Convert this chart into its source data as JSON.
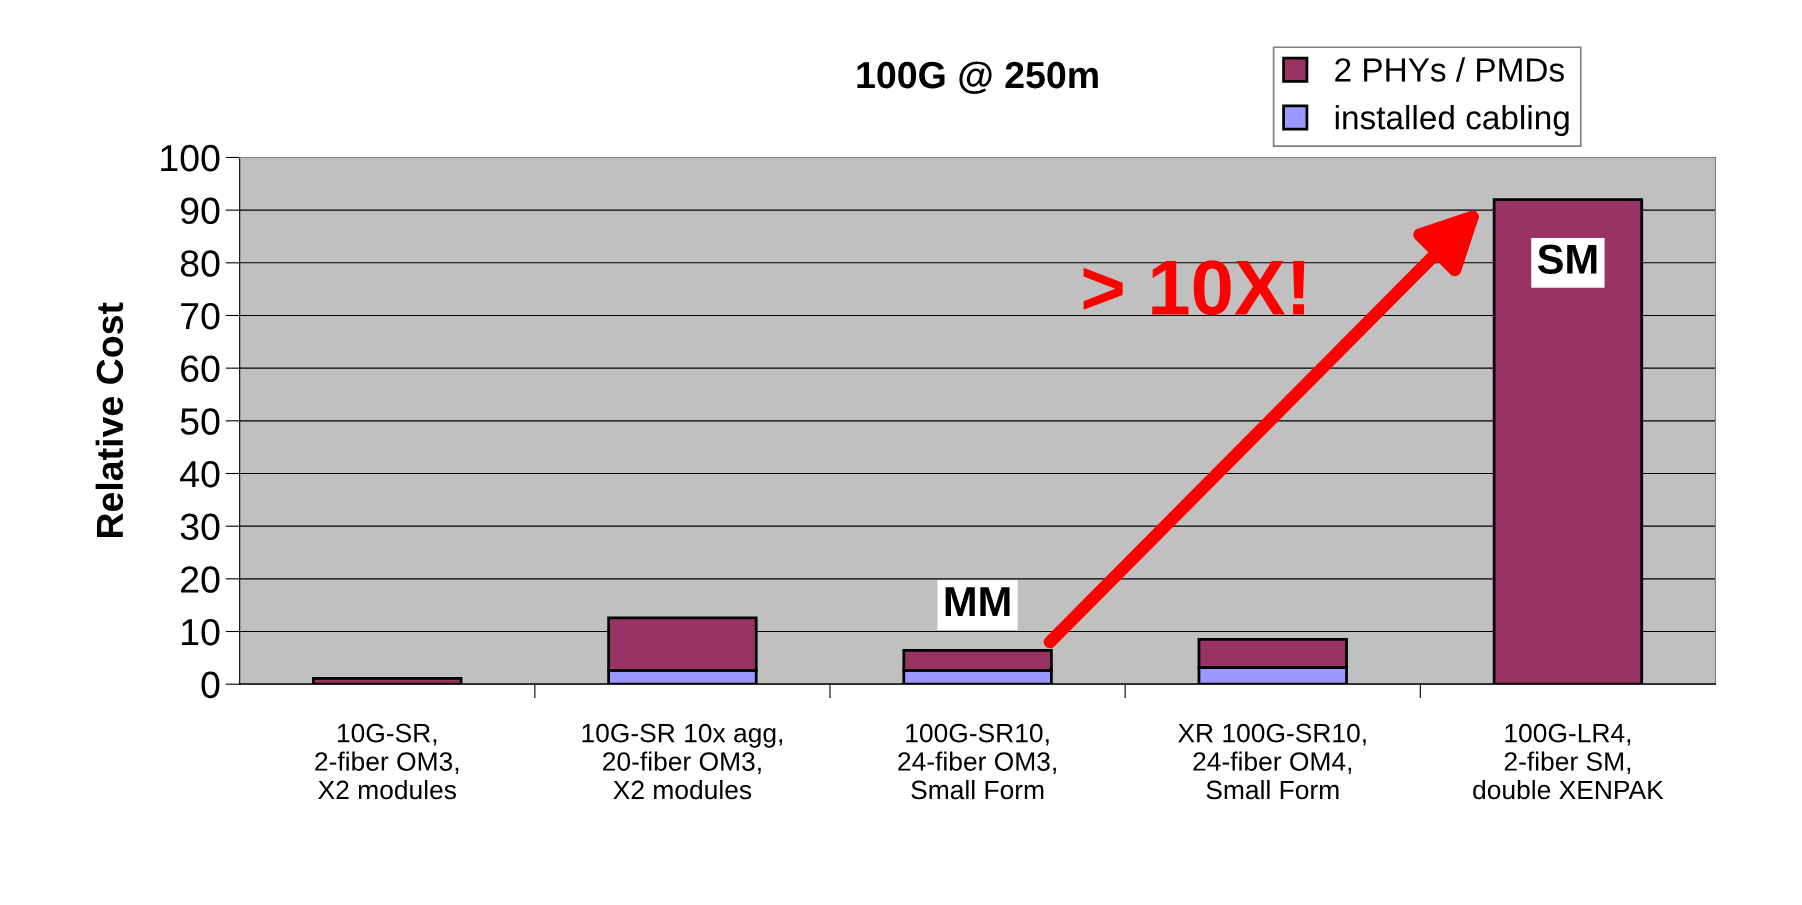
{
  "chart_data": {
    "type": "bar",
    "title": "100G @ 250m",
    "ylabel": "Relative Cost",
    "categories": [
      "10G-SR,\n2-fiber OM3,\nX2 modules",
      "10G-SR 10x agg,\n20-fiber OM3,\nX2 modules",
      "100G-SR10,\n24-fiber OM3,\nSmall Form",
      "XR 100G-SR10,\n24-fiber OM4,\nSmall Form",
      "100G-LR4,\n2-fiber SM,\ndouble XENPAK"
    ],
    "stacked": true,
    "series": [
      {
        "name": "installed cabling",
        "color": "#9999ff",
        "values": [
          null,
          2.6,
          2.6,
          3.2,
          null
        ]
      },
      {
        "name": "2 PHYs / PMDs",
        "color": "#993366",
        "values": [
          1.1,
          10,
          3.8,
          5.3,
          92
        ]
      }
    ],
    "ylim": [
      0,
      100
    ],
    "yticks": [
      0,
      10,
      20,
      30,
      40,
      50,
      60,
      70,
      80,
      90,
      100
    ],
    "grid": "y",
    "legend": "top right",
    "annotations": [
      "MM",
      "SM",
      "> 10X!"
    ]
  }
}
